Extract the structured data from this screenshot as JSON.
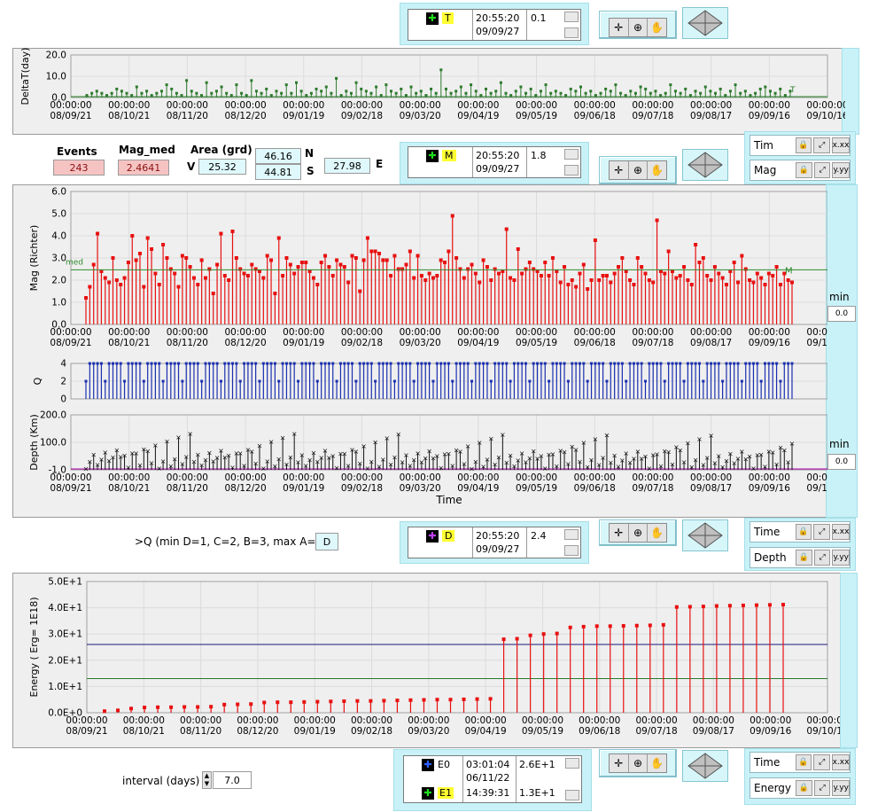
{
  "cursor_top": {
    "name": "T",
    "time": "20:55:20",
    "date": "09/09/27",
    "value": "0.1"
  },
  "cursor_mag": {
    "name": "M",
    "time": "20:55:20",
    "date": "09/09/27",
    "value": "1.8"
  },
  "cursor_depth": {
    "name": "D",
    "time": "20:55:20",
    "date": "09/09/27",
    "value": "2.4"
  },
  "cursor_energy": {
    "rows": [
      {
        "name": "E0",
        "time": "03:01:04",
        "date": "06/11/22",
        "value": "2.6E+1"
      },
      {
        "name": "E1",
        "time": "14:39:31",
        "date": "",
        "value": "1.3E+1"
      }
    ]
  },
  "stats": {
    "events_label": "Events",
    "events_value": "243",
    "magmed_label": "Mag_med",
    "magmed_value": "2.4641",
    "area_label": "Area (grd)",
    "v_label": "V",
    "v_value": "25.32",
    "n_value": "46.16",
    "n_label": "N",
    "s_value": "44.81",
    "s_label": "S",
    "e_value": "27.98",
    "e_label": "E"
  },
  "scales": {
    "mag_panel": [
      {
        "name": "Tim"
      },
      {
        "name": "Mag"
      }
    ],
    "depth_panel": [
      {
        "name": "Time"
      },
      {
        "name": "Depth"
      }
    ],
    "energy_panel": [
      {
        "name": "Time"
      },
      {
        "name": "Energy"
      }
    ]
  },
  "min_controls": [
    {
      "label": "min",
      "value": "0.0"
    },
    {
      "label": "min",
      "value": "0.0"
    }
  ],
  "q_filter": {
    "label": ">Q (min D=1, C=2, B=3, max A=4)",
    "value": "D"
  },
  "interval": {
    "label": "interval (days)",
    "value": "7.0"
  },
  "time_axis_labels": [
    "08/09/21",
    "08/10/21",
    "08/11/20",
    "08/12/20",
    "09/01/19",
    "09/02/18",
    "09/03/20",
    "09/04/19",
    "09/05/19",
    "09/06/18",
    "09/07/18",
    "09/08/17",
    "09/09/16",
    "09/10/16"
  ],
  "time_axis_time": "00:00:00",
  "chart_data": [
    {
      "type": "bar",
      "ylabel": "DeltaT(day)",
      "ylim": [
        0,
        20
      ],
      "yticks": [
        "0.0",
        "10.0",
        "20.0"
      ],
      "values": [
        1,
        2,
        3,
        2,
        1,
        2,
        4,
        3,
        2,
        1,
        5,
        2,
        3,
        1,
        2,
        3,
        6,
        4,
        2,
        1,
        8,
        3,
        2,
        1,
        7,
        2,
        3,
        5,
        2,
        1,
        6,
        2,
        1,
        8,
        3,
        2,
        4,
        1,
        3,
        2,
        6,
        2,
        7,
        3,
        1,
        2,
        4,
        3,
        5,
        2,
        9,
        1,
        3,
        2,
        7,
        4,
        3,
        2,
        5,
        1,
        6,
        3,
        2,
        4,
        1,
        5,
        2,
        3,
        1,
        4,
        2,
        13,
        4,
        2,
        3,
        5,
        2,
        6,
        3,
        1,
        4,
        2,
        3,
        7,
        2,
        1,
        3,
        5,
        2,
        4,
        1,
        3,
        6,
        2,
        3,
        2,
        1,
        4,
        3,
        5,
        2,
        3,
        1,
        2,
        4,
        3,
        6,
        2,
        1,
        3,
        2,
        5,
        4,
        2,
        3,
        1,
        2,
        6,
        3,
        2,
        4,
        1,
        3,
        2,
        5,
        3,
        2,
        4,
        1,
        3,
        6,
        2,
        3,
        1,
        2,
        4,
        5,
        3,
        2,
        4,
        1,
        3
      ]
    },
    {
      "type": "bar",
      "ylabel": "Mag (Richter)",
      "ylim": [
        0,
        6
      ],
      "yticks": [
        "0.0",
        "1.0",
        "2.0",
        "3.0",
        "4.0",
        "5.0",
        "6.0"
      ],
      "median": 2.4641,
      "values": [
        1.2,
        1.7,
        2.7,
        4.1,
        2.4,
        2.1,
        1.9,
        3.0,
        2.0,
        1.8,
        2.1,
        2.8,
        4.0,
        2.9,
        3.2,
        1.7,
        3.9,
        3.4,
        2.3,
        1.8,
        3.6,
        3.0,
        2.5,
        2.3,
        1.7,
        3.1,
        3.0,
        2.6,
        2.1,
        1.8,
        2.9,
        2.1,
        2.5,
        1.4,
        2.7,
        4.1,
        2.2,
        2.0,
        4.2,
        3.0,
        2.5,
        2.3,
        2.2,
        2.7,
        2.5,
        2.4,
        2.1,
        3.1,
        2.9,
        1.4,
        3.9,
        2.2,
        3.0,
        2.7,
        2.3,
        2.6,
        2.8,
        2.8,
        2.4,
        2.1,
        1.8,
        2.8,
        3.1,
        2.6,
        2.2,
        2.9,
        2.7,
        2.6,
        1.9,
        3.1,
        3.0,
        1.5,
        2.9,
        3.9,
        3.3,
        3.3,
        3.2,
        2.9,
        2.9,
        2.2,
        3.1,
        2.5,
        2.5,
        2.7,
        3.3,
        2.1,
        3.1,
        2.2,
        2.0,
        2.3,
        2.1,
        2.2,
        2.9,
        2.8,
        3.3,
        4.9,
        3.0,
        2.5,
        2.1,
        2.5,
        2.7,
        2.3,
        1.9,
        2.9,
        2.6,
        2.0,
        2.5,
        2.3,
        2.4,
        4.3,
        2.1,
        2.0,
        3.4,
        2.3,
        2.5,
        2.8,
        2.5,
        2.4,
        2.2,
        2.8,
        2.2,
        3.0,
        2.4,
        1.9,
        2.6,
        1.8,
        2.0,
        1.7,
        2.3,
        2.7,
        1.6,
        2.0,
        3.8,
        2.0,
        2.2,
        2.2,
        1.9,
        2.3,
        2.6,
        3.0,
        2.4,
        2.0,
        1.8,
        3.0,
        2.6,
        2.3,
        2.0,
        1.9,
        4.7,
        2.4,
        2.3,
        3.3,
        2.4,
        2.1,
        2.2,
        2.6,
        2.0,
        1.8,
        3.6,
        2.8,
        3.0,
        2.2,
        2.0,
        2.6,
        2.3,
        2.1,
        1.8,
        2.4,
        2.8,
        1.9,
        3.1,
        2.5,
        2.0,
        1.9,
        2.3,
        2.1,
        1.8,
        2.3,
        2.2,
        2.6,
        1.8,
        2.3,
        2.0,
        1.9
      ]
    },
    {
      "type": "bar",
      "ylabel": "Q",
      "ylim": [
        0,
        4
      ],
      "yticks": [
        "0",
        "2",
        "4"
      ]
    },
    {
      "type": "scatter",
      "ylabel": "Depth (Km)",
      "xlabel": "Time",
      "ylim": [
        -1,
        200
      ],
      "yticks": [
        "-1.0",
        "100.0",
        "200.0"
      ]
    },
    {
      "type": "bar",
      "ylabel": "Energy ( Erg= 1E18)",
      "ylim": [
        0,
        50
      ],
      "yticks": [
        "0.0E+0",
        "1.0E+1",
        "2.0E+1",
        "3.0E+1",
        "4.0E+1",
        "5.0E+1"
      ],
      "lines": [
        {
          "value": 26,
          "color": "#1a1a7a"
        },
        {
          "value": 13,
          "color": "#2a7a2a"
        }
      ],
      "values": [
        0.6,
        0.9,
        1.6,
        2.0,
        2.1,
        2.1,
        2.2,
        2.2,
        2.3,
        3.1,
        3.2,
        3.3,
        3.9,
        4.0,
        4.0,
        4.1,
        4.2,
        4.3,
        4.4,
        4.5,
        4.5,
        4.6,
        4.7,
        4.8,
        4.9,
        5.0,
        5.0,
        5.1,
        5.2,
        5.3,
        28.0,
        28.2,
        29.5,
        30.0,
        30.2,
        32.5,
        32.8,
        33.0,
        33.0,
        33.1,
        33.2,
        33.3,
        33.5,
        40.3,
        40.4,
        40.5,
        40.7,
        40.8,
        40.9,
        41.0,
        41.1,
        41.2
      ]
    }
  ]
}
